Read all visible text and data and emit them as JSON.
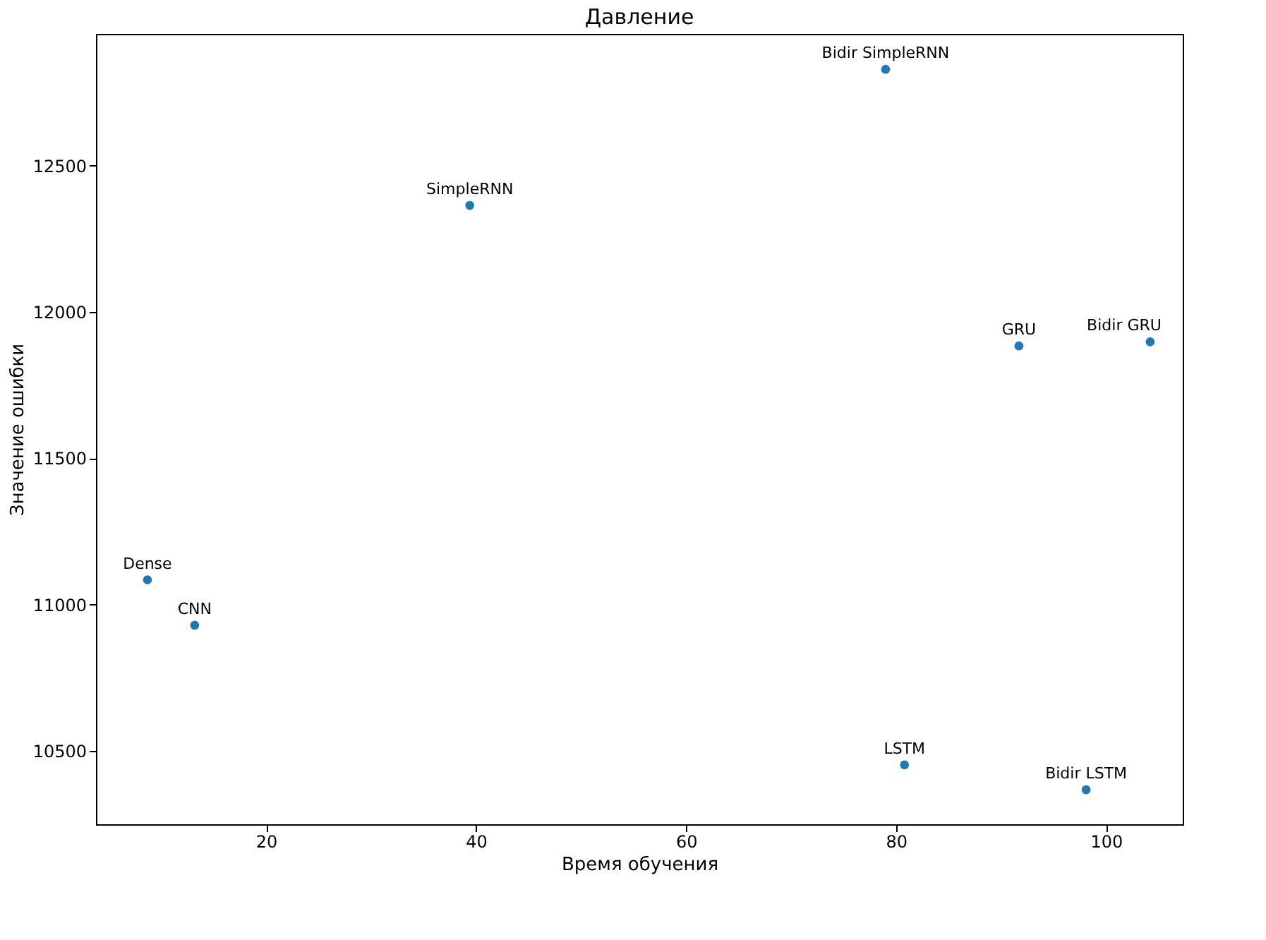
{
  "chart_data": {
    "type": "scatter",
    "title": "Давление",
    "xlabel": "Время обучения",
    "ylabel": "Значение ошибки",
    "x": [
      79.0,
      39.4,
      91.7,
      104.2,
      8.7,
      13.2,
      80.8,
      98.1
    ],
    "series": [
      {
        "color": "#1f77b4",
        "values": [
          12829,
          12364,
          11884,
          11898,
          11085,
          10930,
          10453,
          10368
        ]
      }
    ],
    "annotations": [
      {
        "text": "Bidir SimpleRNN",
        "x": 79.0,
        "y": 12829
      },
      {
        "text": "SimpleRNN",
        "x": 39.4,
        "y": 12364
      },
      {
        "text": "GRU",
        "x": 91.7,
        "y": 11884
      },
      {
        "text": "Bidir GRU",
        "x": 104.2,
        "y": 11898
      },
      {
        "text": "Dense",
        "x": 8.7,
        "y": 11085
      },
      {
        "text": "CNN",
        "x": 13.2,
        "y": 10930
      },
      {
        "text": "LSTM",
        "x": 80.8,
        "y": 10453
      },
      {
        "text": "Bidir LSTM",
        "x": 98.1,
        "y": 10368
      }
    ],
    "xlim": [
      3.8,
      107.3
    ],
    "ylim": [
      10250,
      12950
    ],
    "xticks": [
      20,
      40,
      60,
      80,
      100
    ],
    "yticks": [
      10500,
      11000,
      11500,
      12000,
      12500
    ],
    "grid": false,
    "marker": "circle"
  }
}
